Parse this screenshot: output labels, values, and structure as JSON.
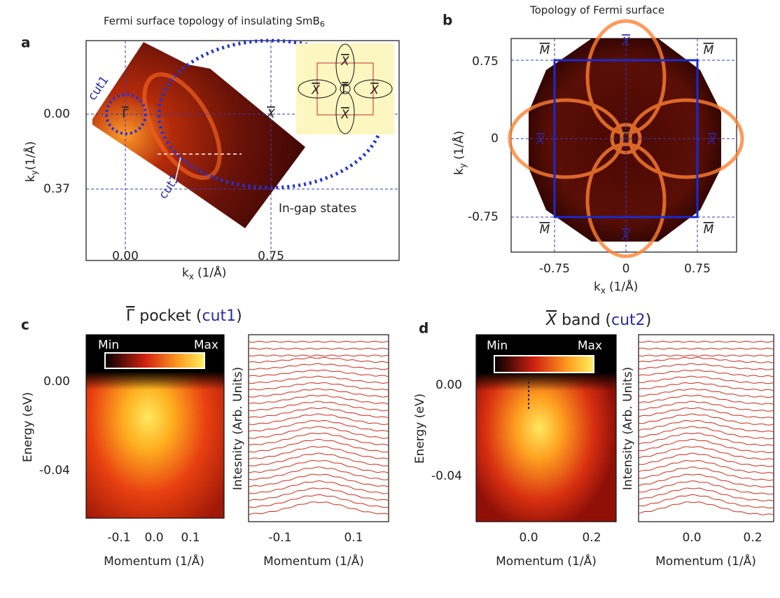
{
  "panel_a": {
    "letter": "a",
    "title": "Fermi surface topology of insulating SmB",
    "title_sub": "6",
    "x_axis": {
      "symbol": "k",
      "sub": "x",
      "unit": "(1/Å)",
      "ticks": [
        "0.00",
        "0.75"
      ]
    },
    "y_axis": {
      "symbol": "k",
      "sub": "y",
      "unit": "(1/Å)",
      "ticks": [
        "0.00",
        "0.37"
      ]
    },
    "labels": {
      "cut1": "cut1",
      "cut2": "cut2",
      "gamma": "Γ",
      "x_point": "X",
      "in_gap": "In-gap states"
    },
    "inset": {
      "x_points": [
        "X",
        "X",
        "X",
        "X"
      ],
      "gamma": "Γ"
    }
  },
  "panel_b": {
    "letter": "b",
    "title": "Topology of Fermi surface",
    "x_axis": {
      "symbol": "k",
      "sub": "x",
      "unit": "(1/Å)",
      "ticks": [
        "-0.75",
        "0",
        "0.75"
      ]
    },
    "y_axis": {
      "symbol": "k",
      "sub": "y",
      "unit": "(1/Å)",
      "ticks": [
        "0.75",
        "0",
        "-0.75"
      ]
    },
    "m_points": [
      "M",
      "M",
      "M",
      "M"
    ],
    "x_points": [
      "X",
      "X",
      "X",
      "X"
    ],
    "gamma": "Γ"
  },
  "panel_c": {
    "letter": "c",
    "title_symbol": "Γ",
    "title_text": " pocket (",
    "title_cut": "cut1",
    "title_end": ")",
    "colorbar": {
      "min": "Min",
      "max": "Max"
    },
    "left": {
      "y_label": "Energy (eV)",
      "y_ticks": [
        "0.00",
        "-0.04"
      ],
      "x_ticks": [
        "-0.1",
        "0.0",
        "0.1"
      ],
      "x_label": "Momentum (1/Å)"
    },
    "right": {
      "y_label": "Intesnity (Arb. Units)",
      "x_ticks": [
        "-0.1",
        "0.1"
      ],
      "x_label": "Momentum (1/Å)"
    }
  },
  "panel_d": {
    "letter": "d",
    "title_symbol": "X",
    "title_text": " band (",
    "title_cut": "cut2",
    "title_end": ")",
    "colorbar": {
      "min": "Min",
      "max": "Max"
    },
    "left": {
      "y_label": "Energy (eV)",
      "y_ticks": [
        "0.00",
        "-0.04"
      ],
      "x_ticks": [
        "0.0",
        "0.2"
      ],
      "x_label": "Momentum (1/Å)"
    },
    "right": {
      "y_label": "Intensity (Arb. Units)",
      "x_ticks": [
        "0.0",
        "0.2"
      ],
      "x_label": "Momentum (1/Å)"
    }
  }
}
